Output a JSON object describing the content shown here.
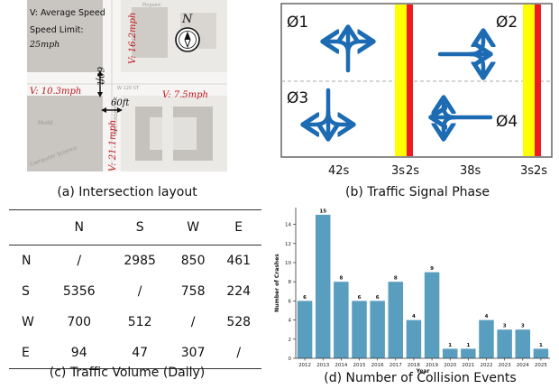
{
  "panel_a": {
    "caption": "(a) Intersection layout",
    "legend_v": "V: Average Speed",
    "speed_limit_label": "Speed Limit:",
    "speed_limit_value": "25mph",
    "compass_n": "N",
    "speed_north": "V: 16.2mph",
    "speed_west": "V: 10.3mph",
    "speed_east": "V: 7.5mph",
    "speed_south": "V: 21.1mph",
    "dist_v": "60ft",
    "dist_h": "60ft",
    "map_labels": {
      "street": "W 120 ST",
      "avenue": "AMSTERDAM AVE",
      "bldg1": "Mudd",
      "bldg2": "Computer Science",
      "corner": "Pinpoint"
    }
  },
  "panel_b": {
    "caption": "(b) Traffic Signal Phase",
    "phases": [
      "Ø1",
      "Ø2",
      "Ø3",
      "Ø4"
    ],
    "timings": [
      "42s",
      "3s",
      "2s",
      "38s",
      "3s",
      "2s"
    ],
    "colors": {
      "arrow": "#1c6bb3",
      "yellow": "#ffff00",
      "red": "#ee1b24"
    }
  },
  "panel_c": {
    "caption": "(c) Traffic Volume (Daily)",
    "columns": [
      "",
      "N",
      "S",
      "W",
      "E"
    ],
    "rows": [
      [
        "N",
        "/",
        "2985",
        "850",
        "461"
      ],
      [
        "S",
        "5356",
        "/",
        "758",
        "224"
      ],
      [
        "W",
        "700",
        "512",
        "/",
        "528"
      ],
      [
        "E",
        "94",
        "47",
        "307",
        "/"
      ]
    ]
  },
  "panel_d": {
    "caption": "(d) Number of Collision Events",
    "chart_data": {
      "type": "bar",
      "categories": [
        "2012",
        "2013",
        "2014",
        "2015",
        "2016",
        "2017",
        "2018",
        "2019",
        "2020",
        "2021",
        "2022",
        "2023",
        "2024",
        "2025"
      ],
      "values": [
        6,
        15,
        8,
        6,
        6,
        8,
        4,
        9,
        1,
        1,
        4,
        3,
        3,
        1
      ],
      "title": "",
      "xlabel": "Year",
      "ylabel": "Number of Crashes",
      "ylim": [
        0,
        15.75
      ],
      "yticks": [
        0,
        2,
        4,
        6,
        8,
        10,
        12,
        14
      ],
      "grid": false,
      "bar_color": "#5a9ebf"
    }
  }
}
